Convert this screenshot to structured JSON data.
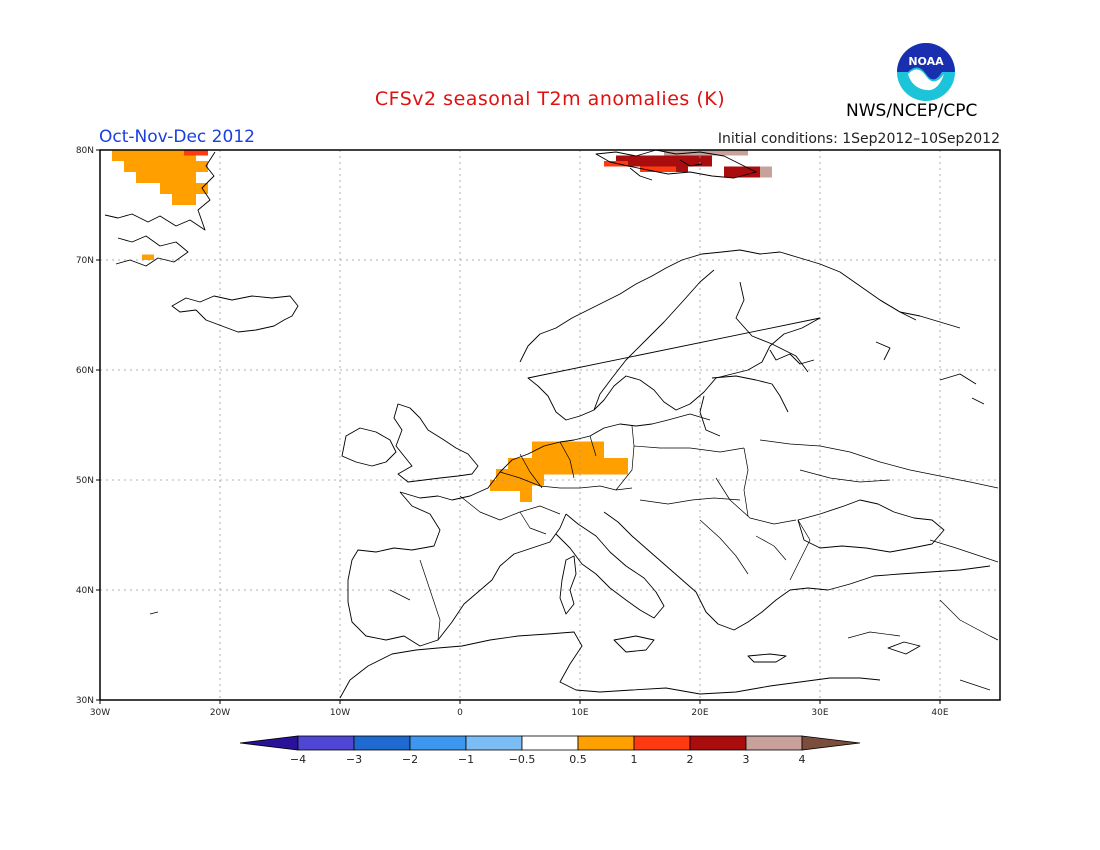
{
  "title": "CFSv2 seasonal T2m anomalies (K)",
  "period": "Oct-Nov-Dec 2012",
  "initial_conditions": "Initial conditions: 1Sep2012–10Sep2012",
  "agency": "NWS/NCEP/CPC",
  "logo_text": "NOAA",
  "map": {
    "lon_range": [
      -30,
      45
    ],
    "lat_range": [
      30,
      80
    ],
    "lat_ticks": [
      {
        "value": 80,
        "label": "80N"
      },
      {
        "value": 70,
        "label": "70N"
      },
      {
        "value": 60,
        "label": "60N"
      },
      {
        "value": 50,
        "label": "50N"
      },
      {
        "value": 40,
        "label": "40N"
      },
      {
        "value": 30,
        "label": "30N"
      }
    ],
    "lon_ticks": [
      {
        "value": -30,
        "label": "30W"
      },
      {
        "value": -20,
        "label": "20W"
      },
      {
        "value": -10,
        "label": "10W"
      },
      {
        "value": 0,
        "label": "0"
      },
      {
        "value": 10,
        "label": "10E"
      },
      {
        "value": 20,
        "label": "20E"
      },
      {
        "value": 30,
        "label": "30E"
      },
      {
        "value": 40,
        "label": "40E"
      }
    ],
    "grid": true,
    "anomaly_regions": [
      {
        "name": "Greenland east coast",
        "class": "0.5-1",
        "cells": [
          [
            -29,
            -22,
            79,
            80
          ],
          [
            -28,
            -21,
            78,
            79
          ],
          [
            -27,
            -22,
            77,
            78
          ],
          [
            -25,
            -21,
            76,
            77
          ],
          [
            -24,
            -22,
            75,
            76
          ]
        ]
      },
      {
        "name": "Greenland NE warm spot",
        "class": "1-2",
        "cells": [
          [
            -23,
            -21,
            79.5,
            80
          ]
        ]
      },
      {
        "name": "Scoresby Sund",
        "class": "0.5-1",
        "cells": [
          [
            -26.5,
            -25.5,
            70,
            70.5
          ]
        ]
      },
      {
        "name": "Benelux and Germany",
        "class": "0.5-1",
        "cells": [
          [
            6,
            12,
            52,
            53.5
          ],
          [
            4,
            14,
            50.5,
            52
          ],
          [
            3,
            7,
            49.5,
            51
          ],
          [
            2.5,
            6,
            49,
            50
          ],
          [
            5,
            6,
            48,
            49
          ]
        ]
      },
      {
        "name": "Svalbard",
        "class": "2-3",
        "cells": [
          [
            13,
            21,
            78.5,
            79.5
          ],
          [
            15,
            19,
            78,
            78.5
          ],
          [
            22,
            25,
            77.5,
            78.5
          ]
        ]
      },
      {
        "name": "Svalbard west",
        "class": "1-2",
        "cells": [
          [
            12,
            14,
            78.5,
            79
          ],
          [
            15,
            18,
            78,
            78.5
          ]
        ]
      },
      {
        "name": "Svalbard east",
        "class": "3-4",
        "cells": [
          [
            17,
            24,
            79.5,
            80
          ],
          [
            25,
            26,
            77.5,
            78.5
          ]
        ]
      }
    ]
  },
  "colorbar": {
    "bins": [
      {
        "class": "<-4",
        "color": "#2a1199"
      },
      {
        "class": "-4--3",
        "color": "#4f46d6"
      },
      {
        "class": "-3--2",
        "color": "#1f6ad0"
      },
      {
        "class": "-2--1",
        "color": "#3e97ee"
      },
      {
        "class": "-1--0.5",
        "color": "#7cbdf6"
      },
      {
        "class": "-0.5-0.5",
        "color": "#ffffff"
      },
      {
        "class": "0.5-1",
        "color": "#ff9f00"
      },
      {
        "class": "1-2",
        "color": "#ff3a10"
      },
      {
        "class": "2-3",
        "color": "#a90d0d"
      },
      {
        "class": "3-4",
        "color": "#c8a29a"
      },
      {
        "class": ">4",
        "color": "#7a4d3c"
      }
    ],
    "labels": [
      "−4",
      "−3",
      "−2",
      "−1",
      "−0.5",
      "0.5",
      "1",
      "2",
      "3",
      "4"
    ]
  }
}
